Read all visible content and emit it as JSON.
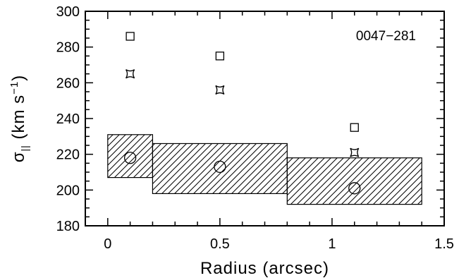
{
  "chart_data": {
    "type": "scatter",
    "xlabel": "Radius (arcsec)",
    "ylabel_main": "σ",
    "ylabel_sub": "||",
    "ylabel_rest": " (km s",
    "ylabel_sup": "−1",
    "ylabel_close": ")",
    "annotation": "0047−281",
    "xlim": [
      -0.1,
      1.5
    ],
    "ylim": [
      180,
      300
    ],
    "x_ticks": [
      {
        "value": 0,
        "label": "0"
      },
      {
        "value": 0.5,
        "label": "0.5"
      },
      {
        "value": 1,
        "label": "1"
      },
      {
        "value": 1.5,
        "label": "1.5"
      }
    ],
    "y_ticks": [
      {
        "value": 180,
        "label": "180"
      },
      {
        "value": 200,
        "label": "200"
      },
      {
        "value": 220,
        "label": "220"
      },
      {
        "value": 240,
        "label": "240"
      },
      {
        "value": 260,
        "label": "260"
      },
      {
        "value": 280,
        "label": "280"
      },
      {
        "value": 300,
        "label": "300"
      }
    ],
    "x_minor_step": 0.1,
    "y_minor_step": 5,
    "boxes": [
      {
        "x0": 0.0,
        "x1": 0.2,
        "y0": 207,
        "y1": 231
      },
      {
        "x0": 0.2,
        "x1": 0.8,
        "y0": 198,
        "y1": 226
      },
      {
        "x0": 0.8,
        "x1": 1.4,
        "y0": 192,
        "y1": 218
      }
    ],
    "series": [
      {
        "marker": "circle",
        "points": [
          [
            0.1,
            218
          ],
          [
            0.5,
            213
          ],
          [
            1.1,
            201
          ]
        ]
      },
      {
        "marker": "square",
        "points": [
          [
            0.1,
            286
          ],
          [
            0.5,
            275
          ],
          [
            1.1,
            235
          ]
        ]
      },
      {
        "marker": "star4",
        "points": [
          [
            0.1,
            265
          ],
          [
            0.5,
            256
          ],
          [
            1.1,
            221
          ]
        ]
      }
    ]
  }
}
